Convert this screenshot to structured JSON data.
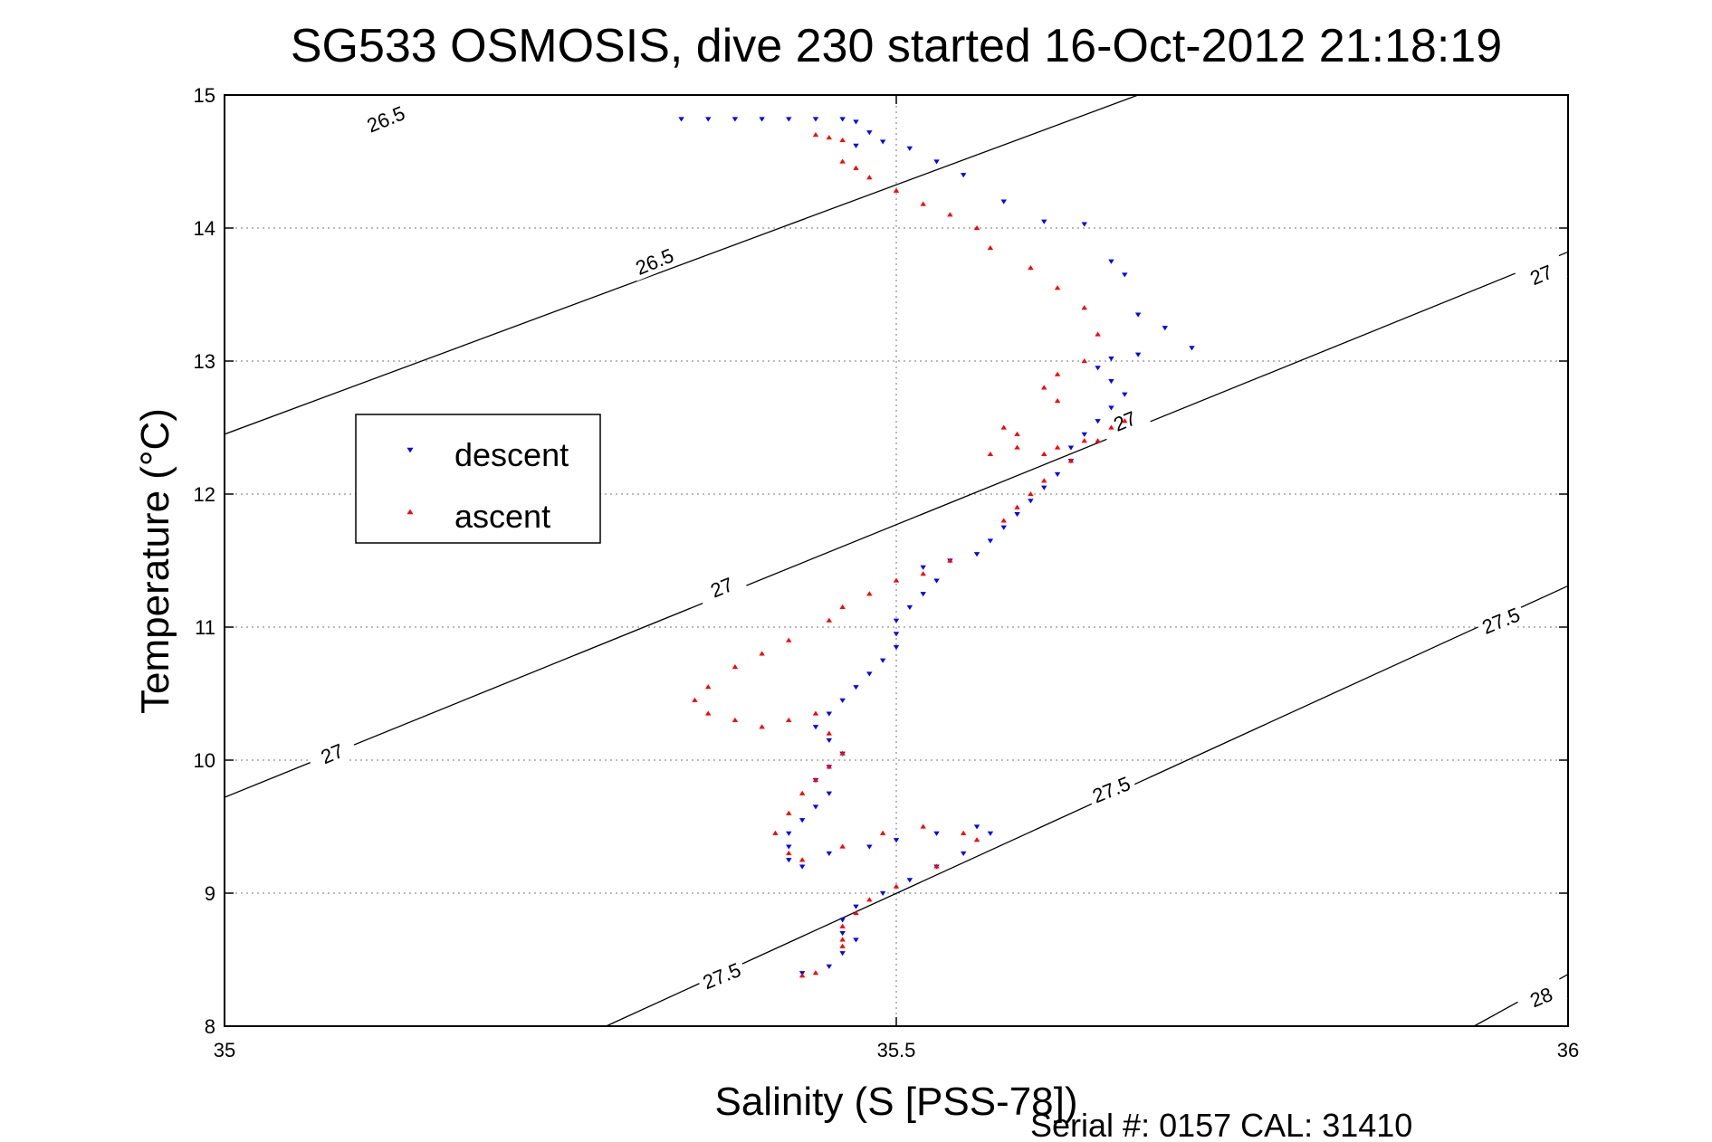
{
  "chart_data": {
    "type": "scatter",
    "title": "SG533 OSMOSIS, dive 230 started 16-Oct-2012 21:18:19",
    "xlabel": "Salinity (S [PSS-78])",
    "ylabel": "Temperature (°C)",
    "footer": "Serial #: 0157  CAL: 31410",
    "xlim": [
      35,
      36
    ],
    "ylim": [
      8,
      15
    ],
    "xticks": [
      35,
      35.5,
      36
    ],
    "xtick_labels": [
      "35",
      "35.5",
      "36"
    ],
    "yticks": [
      8,
      9,
      10,
      11,
      12,
      13,
      14,
      15
    ],
    "ytick_labels": [
      "8",
      "9",
      "10",
      "11",
      "12",
      "13",
      "14",
      "15"
    ],
    "grid": true,
    "legend_placement": "left",
    "series": [
      {
        "name": "descent",
        "color": "#0000ff",
        "marker": "triangle-down",
        "points": [
          [
            35.34,
            14.82
          ],
          [
            35.36,
            14.82
          ],
          [
            35.38,
            14.82
          ],
          [
            35.4,
            14.82
          ],
          [
            35.42,
            14.82
          ],
          [
            35.44,
            14.82
          ],
          [
            35.46,
            14.82
          ],
          [
            35.47,
            14.8
          ],
          [
            35.48,
            14.72
          ],
          [
            35.47,
            14.62
          ],
          [
            35.49,
            14.65
          ],
          [
            35.51,
            14.6
          ],
          [
            35.53,
            14.5
          ],
          [
            35.55,
            14.4
          ],
          [
            35.58,
            14.2
          ],
          [
            35.61,
            14.05
          ],
          [
            35.64,
            14.03
          ],
          [
            35.66,
            13.75
          ],
          [
            35.67,
            13.65
          ],
          [
            35.68,
            13.35
          ],
          [
            35.7,
            13.25
          ],
          [
            35.72,
            13.1
          ],
          [
            35.68,
            13.05
          ],
          [
            35.66,
            13.02
          ],
          [
            35.65,
            12.95
          ],
          [
            35.66,
            12.85
          ],
          [
            35.67,
            12.75
          ],
          [
            35.66,
            12.65
          ],
          [
            35.65,
            12.55
          ],
          [
            35.64,
            12.45
          ],
          [
            35.63,
            12.35
          ],
          [
            35.63,
            12.25
          ],
          [
            35.62,
            12.15
          ],
          [
            35.61,
            12.05
          ],
          [
            35.6,
            11.95
          ],
          [
            35.59,
            11.85
          ],
          [
            35.58,
            11.75
          ],
          [
            35.57,
            11.65
          ],
          [
            35.56,
            11.55
          ],
          [
            35.54,
            11.5
          ],
          [
            35.52,
            11.45
          ],
          [
            35.53,
            11.35
          ],
          [
            35.52,
            11.25
          ],
          [
            35.51,
            11.15
          ],
          [
            35.5,
            11.05
          ],
          [
            35.5,
            10.95
          ],
          [
            35.5,
            10.85
          ],
          [
            35.49,
            10.75
          ],
          [
            35.48,
            10.65
          ],
          [
            35.47,
            10.55
          ],
          [
            35.46,
            10.45
          ],
          [
            35.45,
            10.35
          ],
          [
            35.44,
            10.25
          ],
          [
            35.45,
            10.15
          ],
          [
            35.46,
            10.05
          ],
          [
            35.45,
            9.95
          ],
          [
            35.44,
            9.85
          ],
          [
            35.45,
            9.75
          ],
          [
            35.44,
            9.65
          ],
          [
            35.43,
            9.55
          ],
          [
            35.42,
            9.45
          ],
          [
            35.42,
            9.35
          ],
          [
            35.42,
            9.25
          ],
          [
            35.43,
            9.2
          ],
          [
            35.45,
            9.3
          ],
          [
            35.48,
            9.35
          ],
          [
            35.5,
            9.4
          ],
          [
            35.53,
            9.45
          ],
          [
            35.56,
            9.5
          ],
          [
            35.57,
            9.45
          ],
          [
            35.55,
            9.3
          ],
          [
            35.53,
            9.2
          ],
          [
            35.51,
            9.1
          ],
          [
            35.49,
            9.0
          ],
          [
            35.47,
            8.9
          ],
          [
            35.46,
            8.8
          ],
          [
            35.46,
            8.7
          ],
          [
            35.47,
            8.65
          ],
          [
            35.46,
            8.55
          ],
          [
            35.45,
            8.45
          ],
          [
            35.43,
            8.4
          ]
        ]
      },
      {
        "name": "ascent",
        "color": "#ff0000",
        "marker": "triangle-up",
        "points": [
          [
            35.44,
            14.7
          ],
          [
            35.45,
            14.68
          ],
          [
            35.46,
            14.66
          ],
          [
            35.46,
            14.5
          ],
          [
            35.47,
            14.45
          ],
          [
            35.48,
            14.38
          ],
          [
            35.5,
            14.28
          ],
          [
            35.52,
            14.18
          ],
          [
            35.54,
            14.1
          ],
          [
            35.56,
            14.0
          ],
          [
            35.57,
            13.85
          ],
          [
            35.6,
            13.7
          ],
          [
            35.62,
            13.55
          ],
          [
            35.64,
            13.4
          ],
          [
            35.65,
            13.2
          ],
          [
            35.64,
            13.0
          ],
          [
            35.62,
            12.9
          ],
          [
            35.61,
            12.8
          ],
          [
            35.62,
            12.7
          ],
          [
            35.58,
            12.5
          ],
          [
            35.59,
            12.45
          ],
          [
            35.57,
            12.3
          ],
          [
            35.59,
            12.35
          ],
          [
            35.61,
            12.3
          ],
          [
            35.62,
            12.35
          ],
          [
            35.64,
            12.4
          ],
          [
            35.66,
            12.5
          ],
          [
            35.67,
            12.55
          ],
          [
            35.65,
            12.4
          ],
          [
            35.63,
            12.25
          ],
          [
            35.61,
            12.1
          ],
          [
            35.6,
            12.0
          ],
          [
            35.59,
            11.9
          ],
          [
            35.58,
            11.8
          ],
          [
            35.54,
            11.5
          ],
          [
            35.52,
            11.4
          ],
          [
            35.5,
            11.35
          ],
          [
            35.48,
            11.25
          ],
          [
            35.46,
            11.15
          ],
          [
            35.45,
            11.05
          ],
          [
            35.42,
            10.9
          ],
          [
            35.4,
            10.8
          ],
          [
            35.38,
            10.7
          ],
          [
            35.36,
            10.55
          ],
          [
            35.35,
            10.45
          ],
          [
            35.36,
            10.35
          ],
          [
            35.38,
            10.3
          ],
          [
            35.4,
            10.25
          ],
          [
            35.42,
            10.3
          ],
          [
            35.44,
            10.35
          ],
          [
            35.45,
            10.2
          ],
          [
            35.46,
            10.05
          ],
          [
            35.45,
            9.95
          ],
          [
            35.44,
            9.85
          ],
          [
            35.43,
            9.75
          ],
          [
            35.42,
            9.6
          ],
          [
            35.41,
            9.45
          ],
          [
            35.42,
            9.3
          ],
          [
            35.43,
            9.25
          ],
          [
            35.46,
            9.35
          ],
          [
            35.49,
            9.45
          ],
          [
            35.52,
            9.5
          ],
          [
            35.55,
            9.45
          ],
          [
            35.56,
            9.4
          ],
          [
            35.53,
            9.2
          ],
          [
            35.5,
            9.05
          ],
          [
            35.48,
            8.95
          ],
          [
            35.47,
            8.85
          ],
          [
            35.46,
            8.75
          ],
          [
            35.46,
            8.65
          ],
          [
            35.46,
            8.6
          ],
          [
            35.44,
            8.4
          ],
          [
            35.43,
            8.38
          ]
        ]
      }
    ],
    "contours": [
      {
        "label": "26.5",
        "x1": 35,
        "y1": 12.45,
        "x2": 35.68,
        "y2": 15.0
      },
      {
        "label": "27",
        "x1": 35,
        "y1": 9.72,
        "x2": 36,
        "y2": 13.82
      },
      {
        "label": "27.5",
        "x1": 35.284,
        "y1": 8.0,
        "x2": 36,
        "y2": 11.31
      },
      {
        "label": "28",
        "x1": 35.93,
        "y1": 8.0,
        "x2": 36,
        "y2": 8.39
      }
    ],
    "contour_labels": [
      {
        "text": "26.5",
        "x": 35.12,
        "y": 14.82
      },
      {
        "text": "26.5",
        "x": 35.32,
        "y": 13.75
      },
      {
        "text": "27",
        "x": 35.08,
        "y": 10.05
      },
      {
        "text": "27",
        "x": 35.37,
        "y": 11.3
      },
      {
        "text": "27",
        "x": 35.67,
        "y": 12.55
      },
      {
        "text": "27",
        "x": 35.98,
        "y": 13.65
      },
      {
        "text": "27.5",
        "x": 35.37,
        "y": 8.38
      },
      {
        "text": "27.5",
        "x": 35.66,
        "y": 9.78
      },
      {
        "text": "27.5",
        "x": 35.95,
        "y": 11.05
      },
      {
        "text": "28",
        "x": 35.98,
        "y": 8.22
      }
    ]
  }
}
